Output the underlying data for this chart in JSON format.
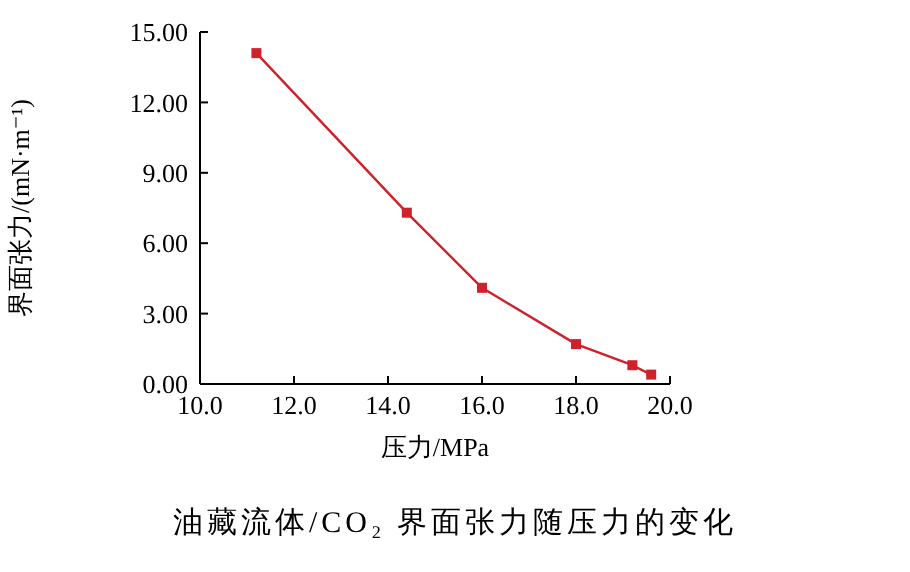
{
  "chart_data": {
    "type": "line",
    "xlabel": "压力/MPa",
    "ylabel": "界面张力/(mN·m⁻¹)",
    "annotations": [
      "油藏流体/CO₂ 界面张力随压力的变化"
    ],
    "x": [
      11.2,
      14.4,
      16.0,
      18.0,
      19.2,
      19.6
    ],
    "series": [
      {
        "color": "#d0202a",
        "values": [
          14.1,
          7.3,
          4.1,
          1.7,
          0.8,
          0.4
        ]
      }
    ],
    "xlim": [
      10,
      20
    ],
    "xticks": [
      {
        "value": 10,
        "label": "10.0"
      },
      {
        "value": 12,
        "label": "12.0"
      },
      {
        "value": 14,
        "label": "14.0"
      },
      {
        "value": 16,
        "label": "16.0"
      },
      {
        "value": 18,
        "label": "18.0"
      },
      {
        "value": 20,
        "label": "20.0"
      }
    ],
    "ylim": [
      0,
      15
    ],
    "yticks": [
      {
        "value": 0,
        "label": "0.00"
      },
      {
        "value": 3,
        "label": "3.00"
      },
      {
        "value": 6,
        "label": "6.00"
      },
      {
        "value": 9,
        "label": "9.00"
      },
      {
        "value": 12,
        "label": "12.00"
      },
      {
        "value": 15,
        "label": "15.00"
      }
    ],
    "grid": false,
    "marker": "square",
    "line_style": "solid"
  }
}
